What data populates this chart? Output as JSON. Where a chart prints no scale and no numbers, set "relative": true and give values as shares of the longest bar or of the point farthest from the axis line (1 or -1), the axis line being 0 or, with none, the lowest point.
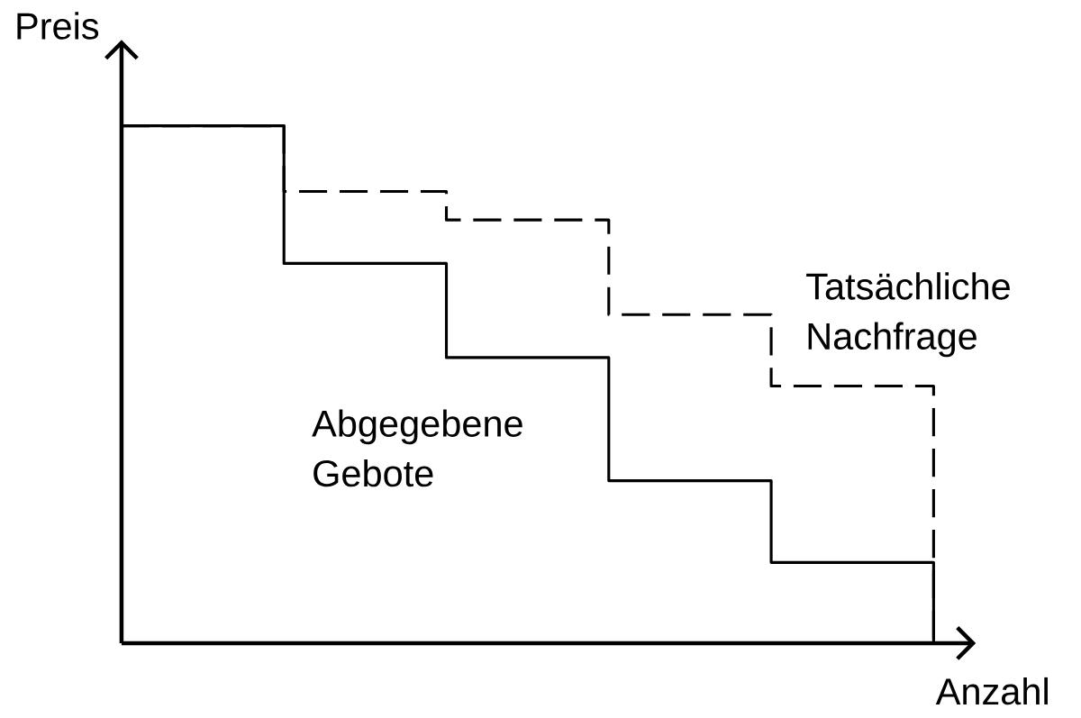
{
  "chart_data": {
    "type": "step",
    "relative": true,
    "xlabel": "Anzahl",
    "ylabel": "Preis",
    "categories": [
      null,
      null,
      null,
      null,
      null,
      null
    ],
    "series": [
      {
        "name": "Abgegebene Gebote",
        "color": "#000000",
        "line_style": "solid",
        "values": [
          1,
          0.734,
          0.552,
          0.314,
          0.156,
          0
        ]
      },
      {
        "name": "Tatsächliche Nachfrage",
        "color": "#000000",
        "line_style": "dashed",
        "values": [
          1,
          0.873,
          0.818,
          0.635,
          0.497,
          0
        ]
      }
    ]
  }
}
